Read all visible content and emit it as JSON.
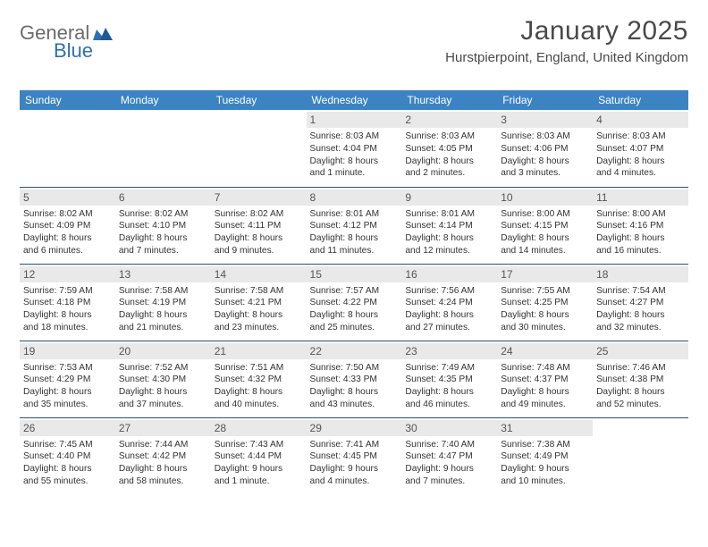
{
  "brand": {
    "part1": "General",
    "part2": "Blue"
  },
  "title": "January 2025",
  "location": "Hurstpierpoint, England, United Kingdom",
  "colors": {
    "header_bg": "#3b83c3",
    "header_text": "#ffffff",
    "row_border": "#2a4e73",
    "daynum_bg": "#e9e9e9",
    "brand_gray": "#6b6b6b",
    "brand_blue": "#2f6fb3"
  },
  "weekdays": [
    "Sunday",
    "Monday",
    "Tuesday",
    "Wednesday",
    "Thursday",
    "Friday",
    "Saturday"
  ],
  "weeks": [
    [
      {
        "empty": true
      },
      {
        "empty": true
      },
      {
        "empty": true
      },
      {
        "day": "1",
        "sunrise": "Sunrise: 8:03 AM",
        "sunset": "Sunset: 4:04 PM",
        "daylight1": "Daylight: 8 hours",
        "daylight2": "and 1 minute."
      },
      {
        "day": "2",
        "sunrise": "Sunrise: 8:03 AM",
        "sunset": "Sunset: 4:05 PM",
        "daylight1": "Daylight: 8 hours",
        "daylight2": "and 2 minutes."
      },
      {
        "day": "3",
        "sunrise": "Sunrise: 8:03 AM",
        "sunset": "Sunset: 4:06 PM",
        "daylight1": "Daylight: 8 hours",
        "daylight2": "and 3 minutes."
      },
      {
        "day": "4",
        "sunrise": "Sunrise: 8:03 AM",
        "sunset": "Sunset: 4:07 PM",
        "daylight1": "Daylight: 8 hours",
        "daylight2": "and 4 minutes."
      }
    ],
    [
      {
        "day": "5",
        "sunrise": "Sunrise: 8:02 AM",
        "sunset": "Sunset: 4:09 PM",
        "daylight1": "Daylight: 8 hours",
        "daylight2": "and 6 minutes."
      },
      {
        "day": "6",
        "sunrise": "Sunrise: 8:02 AM",
        "sunset": "Sunset: 4:10 PM",
        "daylight1": "Daylight: 8 hours",
        "daylight2": "and 7 minutes."
      },
      {
        "day": "7",
        "sunrise": "Sunrise: 8:02 AM",
        "sunset": "Sunset: 4:11 PM",
        "daylight1": "Daylight: 8 hours",
        "daylight2": "and 9 minutes."
      },
      {
        "day": "8",
        "sunrise": "Sunrise: 8:01 AM",
        "sunset": "Sunset: 4:12 PM",
        "daylight1": "Daylight: 8 hours",
        "daylight2": "and 11 minutes."
      },
      {
        "day": "9",
        "sunrise": "Sunrise: 8:01 AM",
        "sunset": "Sunset: 4:14 PM",
        "daylight1": "Daylight: 8 hours",
        "daylight2": "and 12 minutes."
      },
      {
        "day": "10",
        "sunrise": "Sunrise: 8:00 AM",
        "sunset": "Sunset: 4:15 PM",
        "daylight1": "Daylight: 8 hours",
        "daylight2": "and 14 minutes."
      },
      {
        "day": "11",
        "sunrise": "Sunrise: 8:00 AM",
        "sunset": "Sunset: 4:16 PM",
        "daylight1": "Daylight: 8 hours",
        "daylight2": "and 16 minutes."
      }
    ],
    [
      {
        "day": "12",
        "sunrise": "Sunrise: 7:59 AM",
        "sunset": "Sunset: 4:18 PM",
        "daylight1": "Daylight: 8 hours",
        "daylight2": "and 18 minutes."
      },
      {
        "day": "13",
        "sunrise": "Sunrise: 7:58 AM",
        "sunset": "Sunset: 4:19 PM",
        "daylight1": "Daylight: 8 hours",
        "daylight2": "and 21 minutes."
      },
      {
        "day": "14",
        "sunrise": "Sunrise: 7:58 AM",
        "sunset": "Sunset: 4:21 PM",
        "daylight1": "Daylight: 8 hours",
        "daylight2": "and 23 minutes."
      },
      {
        "day": "15",
        "sunrise": "Sunrise: 7:57 AM",
        "sunset": "Sunset: 4:22 PM",
        "daylight1": "Daylight: 8 hours",
        "daylight2": "and 25 minutes."
      },
      {
        "day": "16",
        "sunrise": "Sunrise: 7:56 AM",
        "sunset": "Sunset: 4:24 PM",
        "daylight1": "Daylight: 8 hours",
        "daylight2": "and 27 minutes."
      },
      {
        "day": "17",
        "sunrise": "Sunrise: 7:55 AM",
        "sunset": "Sunset: 4:25 PM",
        "daylight1": "Daylight: 8 hours",
        "daylight2": "and 30 minutes."
      },
      {
        "day": "18",
        "sunrise": "Sunrise: 7:54 AM",
        "sunset": "Sunset: 4:27 PM",
        "daylight1": "Daylight: 8 hours",
        "daylight2": "and 32 minutes."
      }
    ],
    [
      {
        "day": "19",
        "sunrise": "Sunrise: 7:53 AM",
        "sunset": "Sunset: 4:29 PM",
        "daylight1": "Daylight: 8 hours",
        "daylight2": "and 35 minutes."
      },
      {
        "day": "20",
        "sunrise": "Sunrise: 7:52 AM",
        "sunset": "Sunset: 4:30 PM",
        "daylight1": "Daylight: 8 hours",
        "daylight2": "and 37 minutes."
      },
      {
        "day": "21",
        "sunrise": "Sunrise: 7:51 AM",
        "sunset": "Sunset: 4:32 PM",
        "daylight1": "Daylight: 8 hours",
        "daylight2": "and 40 minutes."
      },
      {
        "day": "22",
        "sunrise": "Sunrise: 7:50 AM",
        "sunset": "Sunset: 4:33 PM",
        "daylight1": "Daylight: 8 hours",
        "daylight2": "and 43 minutes."
      },
      {
        "day": "23",
        "sunrise": "Sunrise: 7:49 AM",
        "sunset": "Sunset: 4:35 PM",
        "daylight1": "Daylight: 8 hours",
        "daylight2": "and 46 minutes."
      },
      {
        "day": "24",
        "sunrise": "Sunrise: 7:48 AM",
        "sunset": "Sunset: 4:37 PM",
        "daylight1": "Daylight: 8 hours",
        "daylight2": "and 49 minutes."
      },
      {
        "day": "25",
        "sunrise": "Sunrise: 7:46 AM",
        "sunset": "Sunset: 4:38 PM",
        "daylight1": "Daylight: 8 hours",
        "daylight2": "and 52 minutes."
      }
    ],
    [
      {
        "day": "26",
        "sunrise": "Sunrise: 7:45 AM",
        "sunset": "Sunset: 4:40 PM",
        "daylight1": "Daylight: 8 hours",
        "daylight2": "and 55 minutes."
      },
      {
        "day": "27",
        "sunrise": "Sunrise: 7:44 AM",
        "sunset": "Sunset: 4:42 PM",
        "daylight1": "Daylight: 8 hours",
        "daylight2": "and 58 minutes."
      },
      {
        "day": "28",
        "sunrise": "Sunrise: 7:43 AM",
        "sunset": "Sunset: 4:44 PM",
        "daylight1": "Daylight: 9 hours",
        "daylight2": "and 1 minute."
      },
      {
        "day": "29",
        "sunrise": "Sunrise: 7:41 AM",
        "sunset": "Sunset: 4:45 PM",
        "daylight1": "Daylight: 9 hours",
        "daylight2": "and 4 minutes."
      },
      {
        "day": "30",
        "sunrise": "Sunrise: 7:40 AM",
        "sunset": "Sunset: 4:47 PM",
        "daylight1": "Daylight: 9 hours",
        "daylight2": "and 7 minutes."
      },
      {
        "day": "31",
        "sunrise": "Sunrise: 7:38 AM",
        "sunset": "Sunset: 4:49 PM",
        "daylight1": "Daylight: 9 hours",
        "daylight2": "and 10 minutes."
      },
      {
        "empty": true
      }
    ]
  ]
}
